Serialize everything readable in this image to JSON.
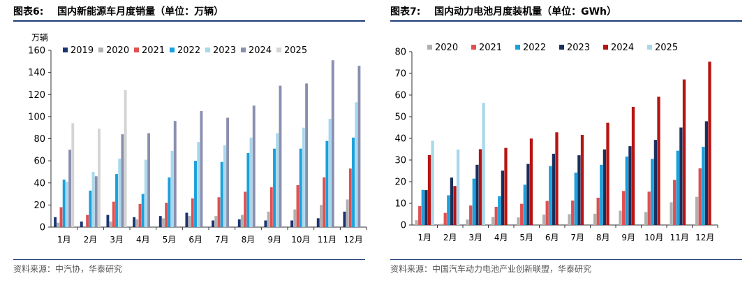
{
  "charts": [
    {
      "figure_label": "图表6:",
      "title_text": "国内新能源车月度销量（单位：万辆）",
      "source": "资料来源：中汽协，华泰研究",
      "colors": {
        "rule": "#1f3d7a"
      },
      "chart_data": {
        "type": "bar",
        "y_unit": "万辆",
        "categories": [
          "1月",
          "2月",
          "3月",
          "4月",
          "5月",
          "6月",
          "7月",
          "8月",
          "9月",
          "10月",
          "11月",
          "12月"
        ],
        "ylim": [
          0,
          160
        ],
        "yticks": [
          0,
          20,
          40,
          60,
          80,
          100,
          120,
          140,
          160
        ],
        "legend_position": "top",
        "grid": false,
        "series": [
          {
            "name": "2019",
            "color": "#1a3472",
            "values": [
              9,
              5,
              11,
              9,
              10,
              13,
              6,
              7,
              6,
              6,
              8,
              14
            ]
          },
          {
            "name": "2020",
            "color": "#b0b0b0",
            "values": [
              4,
              1,
              5,
              7,
              8,
              10,
              10,
              11,
              14,
              16,
              20,
              25
            ]
          },
          {
            "name": "2021",
            "color": "#e05050",
            "values": [
              18,
              11,
              23,
              21,
              22,
              26,
              27,
              32,
              36,
              38,
              45,
              53
            ]
          },
          {
            "name": "2022",
            "color": "#1aa0dc",
            "values": [
              43,
              33,
              48,
              30,
              45,
              60,
              59,
              67,
              71,
              71,
              78,
              81
            ]
          },
          {
            "name": "2023",
            "color": "#a8d8ec",
            "values": [
              41,
              50,
              62,
              61,
              69,
              77,
              74,
              81,
              85,
              90,
              98,
              113
            ]
          },
          {
            "name": "2024",
            "color": "#8a8fb0",
            "values": [
              70,
              46,
              84,
              85,
              96,
              105,
              99,
              110,
              128,
              130,
              151,
              146
            ]
          },
          {
            "name": "2025",
            "color": "#d4d4d4",
            "values": [
              94,
              89,
              124,
              null,
              null,
              null,
              null,
              null,
              null,
              null,
              null,
              null
            ]
          }
        ]
      }
    },
    {
      "figure_label": "图表7:",
      "title_text": "国内动力电池月度装机量（单位：GWh）",
      "source": "资料来源：中国汽车动力电池产业创新联盟，华泰研究",
      "colors": {
        "rule": "#1f3d7a"
      },
      "chart_data": {
        "type": "bar",
        "y_unit": "",
        "categories": [
          "1月",
          "2月",
          "3月",
          "4月",
          "5月",
          "6月",
          "7月",
          "8月",
          "9月",
          "10月",
          "11月",
          "12月"
        ],
        "ylim": [
          0,
          80
        ],
        "yticks": [
          0,
          10,
          20,
          30,
          40,
          50,
          60,
          70,
          80
        ],
        "legend_position": "top",
        "grid": false,
        "series": [
          {
            "name": "2020",
            "color": "#b0b0b0",
            "values": [
              2.2,
              0.6,
              2.5,
              3.7,
              3.5,
              4.8,
              5.0,
              5.2,
              6.6,
              6.0,
              10.5,
              13.0
            ]
          },
          {
            "name": "2021",
            "color": "#e05050",
            "values": [
              8.7,
              5.6,
              9.0,
              8.4,
              9.8,
              11.1,
              11.3,
              12.6,
              15.7,
              15.4,
              20.8,
              26.2
            ]
          },
          {
            "name": "2022",
            "color": "#1aa0dc",
            "values": [
              16.2,
              13.7,
              21.4,
              13.3,
              18.6,
              27.2,
              24.2,
              27.8,
              31.6,
              30.5,
              34.3,
              36.1
            ]
          },
          {
            "name": "2023",
            "color": "#1a2f5c",
            "values": [
              16.1,
              21.9,
              27.8,
              25.1,
              28.2,
              32.9,
              32.2,
              34.9,
              36.4,
              39.3,
              45.0,
              47.9
            ]
          },
          {
            "name": "2024",
            "color": "#b81414",
            "values": [
              32.3,
              18.0,
              35.0,
              35.6,
              39.9,
              42.8,
              41.6,
              47.2,
              54.5,
              59.2,
              67.2,
              75.4
            ]
          },
          {
            "name": "2025",
            "color": "#a8d8ec",
            "values": [
              38.9,
              34.8,
              56.4,
              null,
              null,
              null,
              null,
              null,
              null,
              null,
              null,
              null
            ]
          }
        ]
      }
    }
  ]
}
